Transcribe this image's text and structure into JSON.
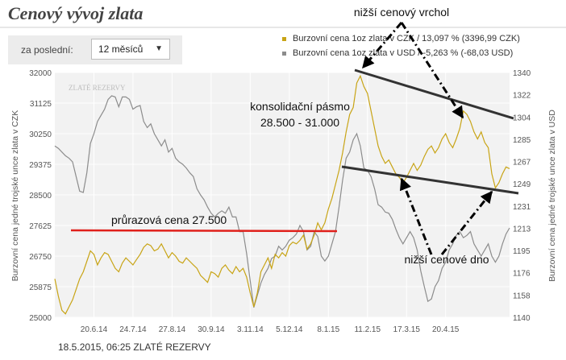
{
  "header": {
    "title": "Cenový vývoj zlata"
  },
  "controls": {
    "period_label": "za poslední:",
    "period_value": "12 měsíců",
    "caret_icon": "chevron-down-icon"
  },
  "legend": [
    {
      "text": "Burzovní cena 1oz zlata v CZK / 13,097 % (3396,99 CZK)",
      "color": "#c8a415"
    },
    {
      "text": "Burzovní cena 1oz zlata v USD / -5,263 % (-68,03 USD)",
      "color": "#8c8c8c"
    }
  ],
  "watermark": "ZLATÉ REZERVY",
  "footer": "18.5.2015, 06:25 ZLATÉ REZERVY",
  "colors": {
    "czk_line": "#c8a415",
    "usd_line": "#8c8c8c",
    "support_line": "#e0201b",
    "trend_line": "#333333",
    "arrow": "#000000",
    "plot_bg": "#f2f2f2"
  },
  "chart_data": {
    "type": "line",
    "ylabel_left": "Burzovní cena jedné trojské unce zlata v CZK",
    "ylabel_right": "Burzovní cena jedné trojské unce zlata v USD",
    "y_left_range": [
      25000,
      32000
    ],
    "y_right_range": [
      1140,
      1340
    ],
    "y_left_ticks": [
      "32000",
      "31125",
      "30250",
      "29375",
      "28500",
      "27625",
      "26750",
      "25875",
      "25000"
    ],
    "y_right_ticks": [
      "1340",
      "1322",
      "1304",
      "1285",
      "1267",
      "1249",
      "1231",
      "1213",
      "1195",
      "1176",
      "1158",
      "1140"
    ],
    "x_ticks": [
      "20.6.14",
      "24.7.14",
      "27.8.14",
      "30.9.14",
      "3.11.14",
      "5.12.14",
      "8.1.15",
      "11.2.15",
      "17.3.15",
      "20.4.15"
    ],
    "x_tick_index": [
      11,
      22,
      33,
      44,
      55,
      66,
      77,
      88,
      99,
      110
    ],
    "grid": true,
    "legend_position": "top-right",
    "series": [
      {
        "name": "Burzovní cena 1oz zlata v CZK",
        "axis": "left",
        "values": [
          26100,
          25600,
          25200,
          25100,
          25300,
          25500,
          25800,
          26100,
          26300,
          26600,
          26900,
          26800,
          26500,
          26700,
          26850,
          26800,
          26600,
          26400,
          26300,
          26550,
          26700,
          26600,
          26500,
          26650,
          26800,
          27000,
          27100,
          27050,
          26900,
          26950,
          27100,
          26900,
          26700,
          26850,
          26750,
          26600,
          26550,
          26700,
          26600,
          26500,
          26400,
          26200,
          26100,
          26000,
          26300,
          26250,
          26150,
          26400,
          26500,
          26350,
          26250,
          26450,
          26300,
          26400,
          26150,
          25700,
          25300,
          25700,
          26300,
          26500,
          26700,
          26400,
          26800,
          26700,
          26850,
          26750,
          27050,
          27150,
          27100,
          27200,
          27350,
          26950,
          27100,
          27350,
          27700,
          27500,
          27700,
          28100,
          28400,
          28800,
          29200,
          29700,
          30300,
          30800,
          31000,
          31700,
          31900,
          31600,
          31400,
          30900,
          30400,
          29900,
          29600,
          29400,
          29500,
          29300,
          29100,
          29000,
          28850,
          29000,
          29200,
          29400,
          29200,
          29350,
          29600,
          29800,
          29900,
          29700,
          29850,
          30100,
          30250,
          30000,
          29850,
          30100,
          30400,
          30900,
          30800,
          30600,
          30300,
          30100,
          30300,
          30000,
          29850,
          29100,
          28700,
          28850,
          29100,
          29300,
          29250
        ]
      },
      {
        "name": "Burzovní cena 1oz zlata v USD",
        "axis": "right",
        "values": [
          1280,
          1278,
          1275,
          1272,
          1270,
          1267,
          1255,
          1243,
          1242,
          1258,
          1282,
          1290,
          1300,
          1305,
          1310,
          1318,
          1321,
          1320,
          1312,
          1320,
          1320,
          1318,
          1310,
          1312,
          1313,
          1300,
          1295,
          1298,
          1290,
          1285,
          1280,
          1285,
          1275,
          1278,
          1270,
          1267,
          1265,
          1262,
          1258,
          1255,
          1245,
          1240,
          1236,
          1230,
          1225,
          1222,
          1225,
          1227,
          1225,
          1230,
          1222,
          1222,
          1210,
          1210,
          1192,
          1170,
          1148,
          1158,
          1168,
          1175,
          1180,
          1188,
          1190,
          1198,
          1195,
          1198,
          1203,
          1205,
          1208,
          1215,
          1210,
          1195,
          1198,
          1210,
          1206,
          1190,
          1186,
          1190,
          1200,
          1210,
          1230,
          1252,
          1270,
          1275,
          1285,
          1290,
          1280,
          1262,
          1260,
          1255,
          1245,
          1232,
          1230,
          1226,
          1225,
          1220,
          1212,
          1205,
          1200,
          1205,
          1210,
          1205,
          1195,
          1178,
          1165,
          1153,
          1155,
          1165,
          1170,
          1180,
          1185,
          1195,
          1200,
          1207,
          1210,
          1205,
          1207,
          1210,
          1200,
          1195,
          1190,
          1195,
          1200,
          1190,
          1185,
          1190,
          1200,
          1208,
          1213
        ]
      }
    ],
    "annotations": {
      "support_label": "průrazová cena 27.500",
      "consolidation_label_1": "konsolidační pásmo",
      "consolidation_label_2": "28.500 - 31.000",
      "lower_high_label": "nižší cenový vrchol",
      "lower_low_label": "nižší cenové dno"
    }
  }
}
